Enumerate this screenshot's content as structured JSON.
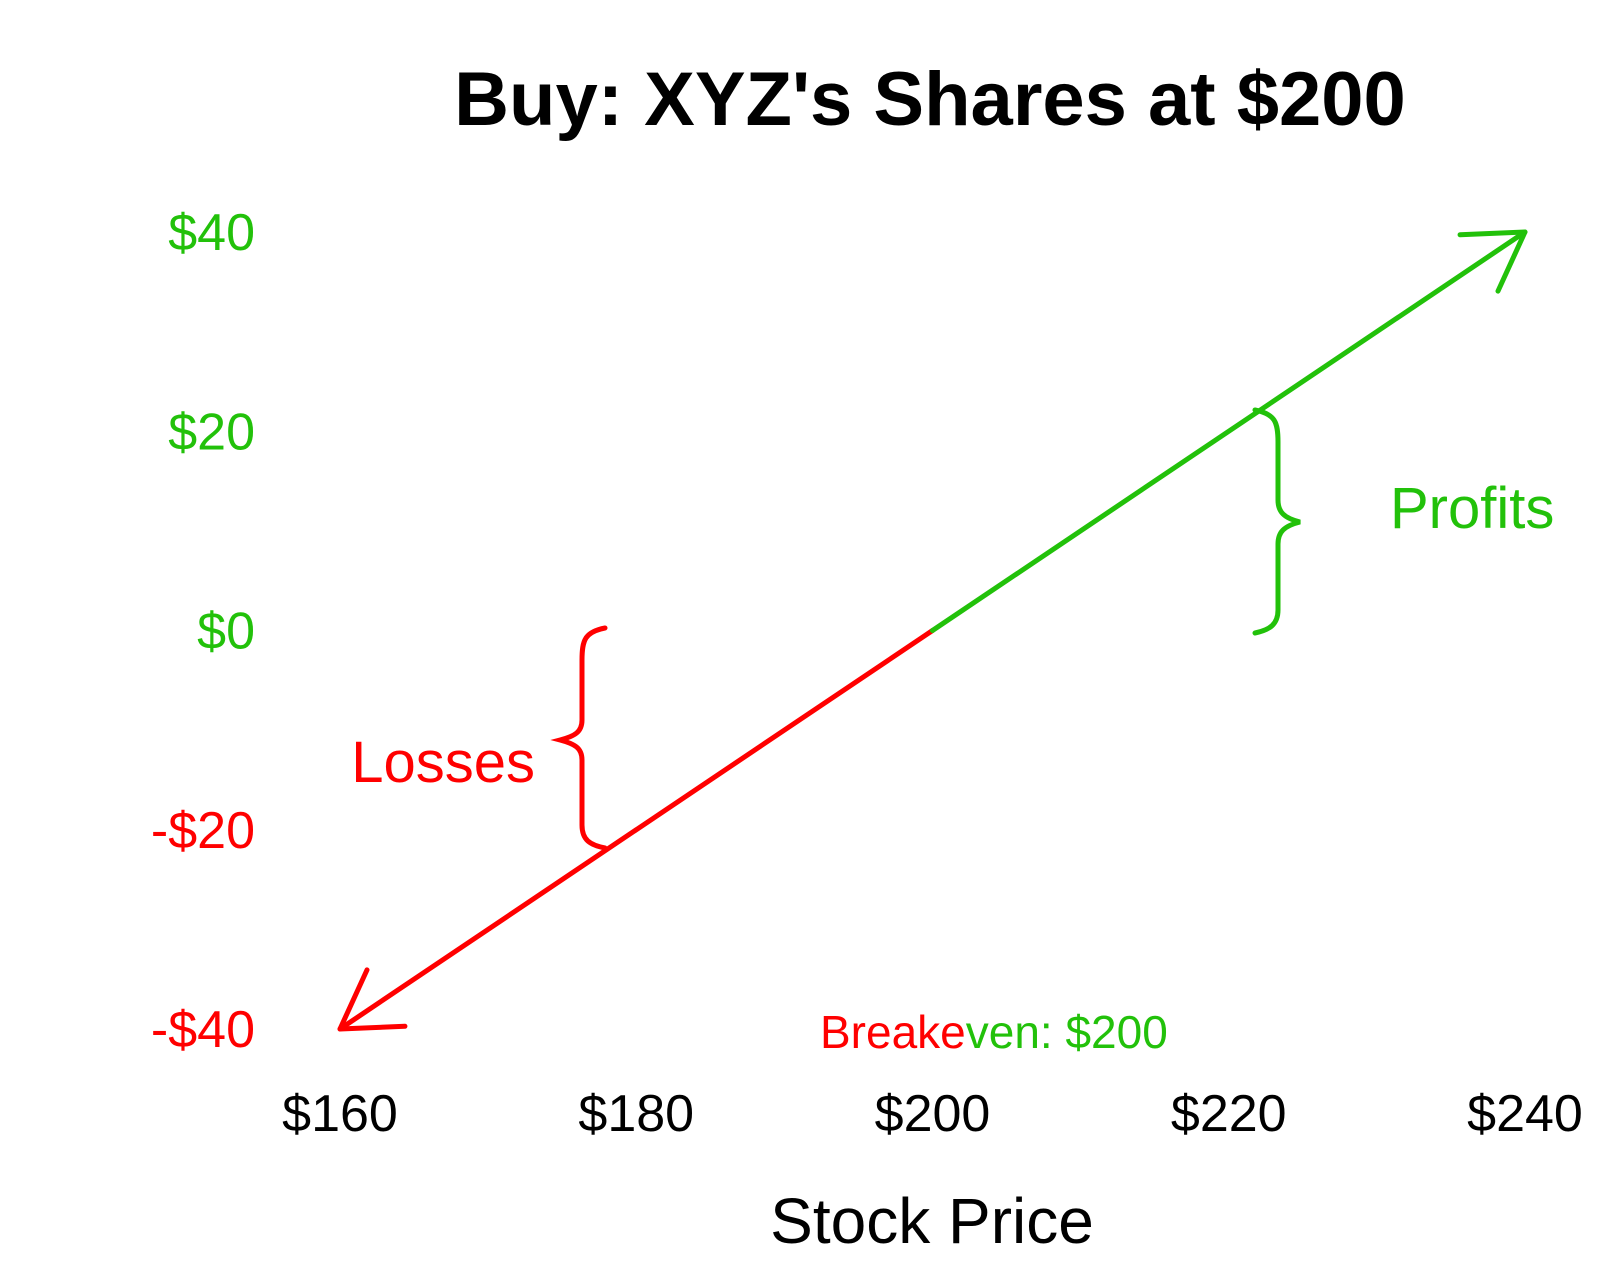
{
  "chart_data": {
    "type": "line",
    "title": "Buy: XYZ's Shares at $200",
    "xlabel": "Stock Price",
    "ylabel": "",
    "x_ticks": [
      160,
      180,
      200,
      220,
      240
    ],
    "x_tick_labels": [
      "$160",
      "$180",
      "$200",
      "$220",
      "$240"
    ],
    "y_ticks": [
      40,
      20,
      0,
      -20,
      -40
    ],
    "y_tick_labels": [
      "$40",
      "$20",
      "$0",
      "-$20",
      "-$40"
    ],
    "xlim": [
      160,
      240
    ],
    "ylim": [
      -40,
      40
    ],
    "grid": false,
    "series": [
      {
        "x": [
          160,
          180,
          200,
          220,
          240
        ],
        "y": [
          -40,
          -20,
          0,
          20,
          40
        ],
        "segments": [
          {
            "x": [
              160,
              200
            ],
            "y": [
              -40,
              0
            ],
            "color": "#ff0000"
          },
          {
            "x": [
              200,
              240
            ],
            "y": [
              0,
              40
            ],
            "color": "#22c10a"
          }
        ]
      }
    ],
    "annotations": {
      "profits": {
        "text": "Profits",
        "color": "#22c10a",
        "range": [
          0,
          20
        ]
      },
      "losses": {
        "text": "Losses",
        "color": "#ff0000",
        "range": [
          -20,
          0
        ]
      },
      "breakeven_prefix": "Breake",
      "breakeven_suffix": "ven: $200",
      "breakeven_prefix_color": "#ff0000",
      "breakeven_suffix_color": "#22c10a"
    },
    "colors": {
      "profit": "#22c10a",
      "loss": "#ff0000",
      "text": "#000000"
    }
  }
}
